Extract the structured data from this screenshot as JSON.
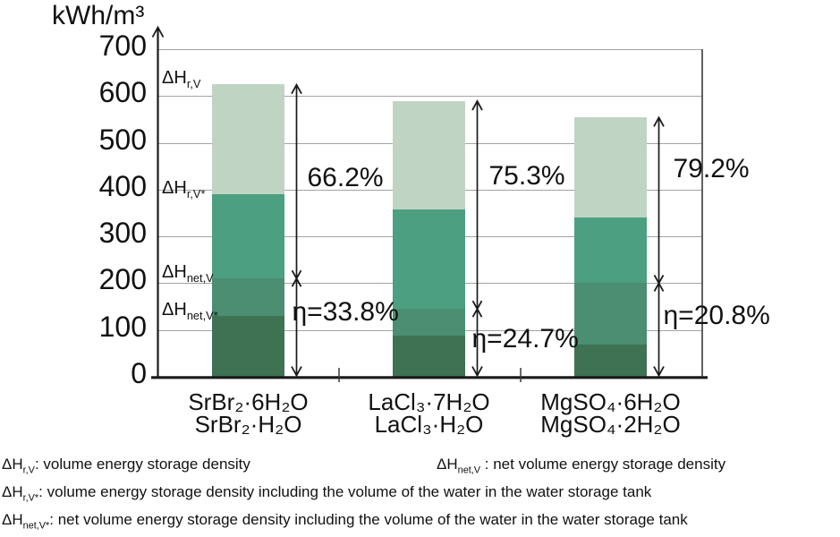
{
  "figure": {
    "background": "#ffffff",
    "text_color": "#111111"
  },
  "chart_data": {
    "type": "bar",
    "subtype": "stacked",
    "unit_label": "kWh/m³",
    "ylim": [
      0,
      700
    ],
    "ytick_step": 100,
    "grid": true,
    "axis_color": "#1a1a1a",
    "gridline_color": "#a3a3a3",
    "segment_keys_bottom_to_top": [
      "dH_net_V_star",
      "dH_net_V",
      "dH_r_V_star",
      "dH_r_V"
    ],
    "segment_colors_bottom_to_top": [
      "#3f7153",
      "#4b8e71",
      "#4d9f82",
      "#c0d4c4"
    ],
    "categories": [
      [
        "SrBr₂·6H₂O",
        "SrBr₂·H₂O"
      ],
      [
        "LaCl₃·7H₂O",
        "LaCl₃·H₂O"
      ],
      [
        "MgSO₄·6H₂O",
        "MgSO₄·2H₂O"
      ]
    ],
    "bars": [
      {
        "cumulative_values_kwh_per_m3": {
          "dH_net_V_star": 130,
          "dH_net_V": 210,
          "dH_r_V_star": 390,
          "dH_r_V": 625
        },
        "arrow_split_at_value": 210,
        "upper_label": "66.2%",
        "eta_label": "η=33.8%",
        "upper_label_pos": {
          "dx": 12,
          "at_value": 424
        },
        "eta_label_pos": {
          "dx": -5,
          "at_value": 137
        }
      },
      {
        "cumulative_values_kwh_per_m3": {
          "dH_net_V_star": 88,
          "dH_net_V": 145,
          "dH_r_V_star": 358,
          "dH_r_V": 590
        },
        "arrow_split_at_value": 145,
        "upper_label": "75.3%",
        "eta_label": "η=24.7%",
        "upper_label_pos": {
          "dx": 13,
          "at_value": 429
        },
        "eta_label_pos": {
          "dx": -6,
          "at_value": 80
        }
      },
      {
        "cumulative_values_kwh_per_m3": {
          "dH_net_V_star": 68,
          "dH_net_V": 200,
          "dH_r_V_star": 340,
          "dH_r_V": 555
        },
        "arrow_split_at_value": 200,
        "upper_label": "79.2%",
        "eta_label": "η=20.8%",
        "upper_label_pos": {
          "dx": 16,
          "at_value": 444
        },
        "eta_label_pos": {
          "dx": 5,
          "at_value": 130
        }
      }
    ],
    "segment_boundary_labels": [
      {
        "name": "delta-h-r-v-label",
        "html": "ΔH<sub>r,V</sub>",
        "at_value": 625
      },
      {
        "name": "delta-h-r-v-star-label",
        "html": "ΔH<sub>r,V*</sub>",
        "at_value": 390
      },
      {
        "name": "delta-h-net-v-label",
        "html": "ΔH<sub>net,V</sub>",
        "at_value": 210
      },
      {
        "name": "delta-h-net-v-star-label",
        "html": "ΔH<sub>net,V*</sub>",
        "at_value": 130
      }
    ]
  },
  "footnotes_html": {
    "line1_left": "ΔH<sub>r,V</sub>: volume energy storage density",
    "line1_right": "ΔH<sub>net,V</sub> : net volume energy storage density",
    "line2": "ΔH<sub>r,V*</sub>: volume energy storage density including the volume of the water in the water storage tank",
    "line3": "ΔH<sub>net,V*</sub>: net volume energy storage density including the volume of the water in the water storage tank"
  }
}
